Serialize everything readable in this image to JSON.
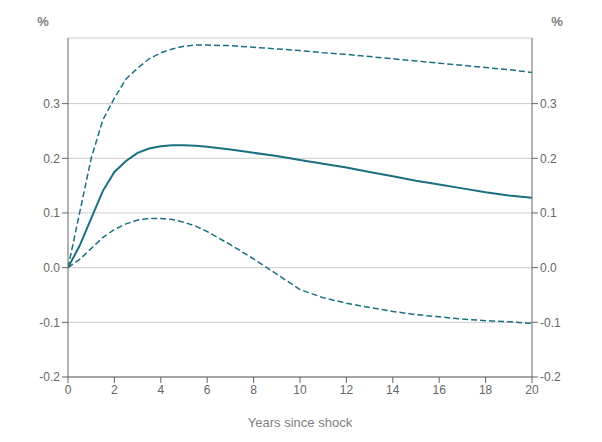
{
  "chart_data": {
    "type": "line",
    "xlabel": "Years since shock",
    "ylabel": "%",
    "y2label": "%",
    "color": "#1a7080",
    "grid": true,
    "xlim": [
      0,
      20
    ],
    "xticks": [
      0,
      2,
      4,
      6,
      8,
      10,
      12,
      14,
      16,
      18,
      20
    ],
    "ylim": [
      -0.2,
      0.42
    ],
    "yticks": [
      -0.2,
      -0.1,
      {
        "value": 0,
        "label": "0.0"
      },
      0.1,
      0.2,
      0.3
    ],
    "y2lim": [
      -0.2,
      0.42
    ],
    "y2ticks": [
      -0.2,
      -0.1,
      {
        "value": 0,
        "label": "0.0"
      },
      0.1,
      0.2,
      0.3
    ],
    "x": [
      0,
      0.5,
      1,
      1.5,
      2,
      2.5,
      3,
      3.5,
      4,
      4.5,
      5,
      5.5,
      6,
      7,
      8,
      9,
      10,
      11,
      12,
      13,
      14,
      15,
      16,
      17,
      18,
      19,
      20
    ],
    "series": [
      {
        "line_style": "solid",
        "values": [
          0.0,
          0.04,
          0.09,
          0.14,
          0.175,
          0.195,
          0.21,
          0.218,
          0.222,
          0.224,
          0.224,
          0.223,
          0.221,
          0.216,
          0.21,
          0.204,
          0.197,
          0.19,
          0.183,
          0.175,
          0.167,
          0.159,
          0.152,
          0.145,
          0.138,
          0.132,
          0.128
        ]
      },
      {
        "line_style": "dashed",
        "values": [
          0.0,
          0.1,
          0.2,
          0.27,
          0.31,
          0.345,
          0.365,
          0.382,
          0.393,
          0.4,
          0.405,
          0.407,
          0.407,
          0.406,
          0.403,
          0.4,
          0.397,
          0.393,
          0.39,
          0.386,
          0.382,
          0.378,
          0.374,
          0.37,
          0.366,
          0.362,
          0.357
        ]
      },
      {
        "line_style": "dashed",
        "values": [
          0.0,
          0.015,
          0.035,
          0.055,
          0.07,
          0.08,
          0.087,
          0.09,
          0.09,
          0.088,
          0.083,
          0.076,
          0.066,
          0.042,
          0.016,
          -0.012,
          -0.04,
          -0.055,
          -0.065,
          -0.073,
          -0.08,
          -0.086,
          -0.09,
          -0.094,
          -0.097,
          -0.099,
          -0.102
        ]
      }
    ]
  }
}
